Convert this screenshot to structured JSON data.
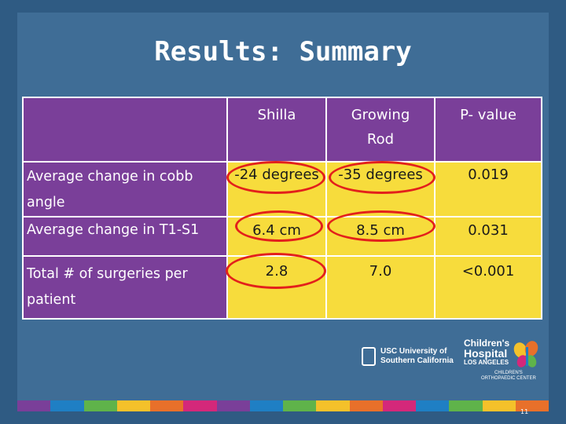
{
  "slide": {
    "title": "Results: Summary",
    "page_number": "11"
  },
  "table": {
    "headers": [
      "",
      "Shilla",
      "Growing Rod",
      "P- value"
    ],
    "header_lines": {
      "shilla": [
        "Shilla"
      ],
      "growing_rod": [
        "Growing",
        "Rod"
      ],
      "p_value": [
        "P- value"
      ]
    },
    "rows": [
      {
        "label_lines": [
          "Average change in cobb",
          "angle"
        ],
        "shilla": "-24 degrees",
        "growing_rod": "-35 degrees",
        "p_value": "0.019"
      },
      {
        "label_lines": [
          "Average change in T1-S1"
        ],
        "shilla": "6.4 cm",
        "growing_rod": "8.5 cm",
        "p_value": "0.031"
      },
      {
        "label_lines": [
          "Total # of surgeries per",
          "patient"
        ],
        "shilla": "2.8",
        "growing_rod": "7.0",
        "p_value": "<0.001"
      }
    ]
  },
  "logos": {
    "usc_line1": "USC University of",
    "usc_line2": "Southern California",
    "chla_line1": "Children's",
    "chla_line2": "Hospital",
    "chla_line3": "LOS ANGELES",
    "chla_sub1": "CHILDREN'S",
    "chla_sub2": "ORTHOPAEDIC CENTER"
  },
  "colors": {
    "background": "#2f5b83",
    "header_purple": "#7a3f99",
    "cell_yellow": "#f7dc3c",
    "highlight_red": "#e3201b",
    "stripe": [
      "#7a3f99",
      "#1f7fc4",
      "#5fb34a",
      "#f4c12a",
      "#e8702a",
      "#d4287a",
      "#7a3f99",
      "#1f7fc4",
      "#5fb34a",
      "#f4c12a",
      "#e8702a",
      "#d4287a",
      "#1f7fc4",
      "#5fb34a",
      "#f4c12a",
      "#e8702a"
    ]
  }
}
